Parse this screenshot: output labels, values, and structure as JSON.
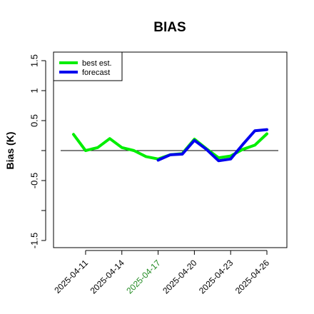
{
  "chart_data": {
    "type": "line",
    "title": "BIAS",
    "ylabel": "Bias (K)",
    "xlabel": "",
    "ylim": [
      -1.6,
      1.6
    ],
    "yticks": [
      -1.5,
      -0.5,
      0.5,
      1.0,
      1.5
    ],
    "yticks_unlabeled": [
      -1.0,
      0.0
    ],
    "xticks": [
      "2025-04-11",
      "2025-04-14",
      "2025-04-17",
      "2025-04-20",
      "2025-04-23",
      "2025-04-26"
    ],
    "highlighted_xtick": "2025-04-17",
    "highlight_color": "#228b22",
    "x": [
      "2025-04-10",
      "2025-04-11",
      "2025-04-12",
      "2025-04-13",
      "2025-04-14",
      "2025-04-15",
      "2025-04-16",
      "2025-04-17",
      "2025-04-18",
      "2025-04-19",
      "2025-04-20",
      "2025-04-21",
      "2025-04-22",
      "2025-04-23",
      "2025-04-24",
      "2025-04-25",
      "2025-04-26"
    ],
    "series": [
      {
        "name": "best est.",
        "color": "#00ee00",
        "values": [
          0.27,
          0.0,
          0.05,
          0.2,
          0.05,
          0.0,
          -0.1,
          -0.14,
          -0.07,
          -0.05,
          0.19,
          0.03,
          -0.12,
          -0.09,
          0.02,
          0.09,
          0.28
        ]
      },
      {
        "name": "forecast",
        "color": "#0000ee",
        "values": [
          null,
          null,
          null,
          null,
          null,
          null,
          null,
          -0.16,
          -0.07,
          -0.06,
          0.17,
          0.02,
          -0.17,
          -0.14,
          0.1,
          0.33,
          0.35
        ]
      }
    ],
    "reference_line": 0,
    "legend_position": "top-left",
    "grid": false
  }
}
